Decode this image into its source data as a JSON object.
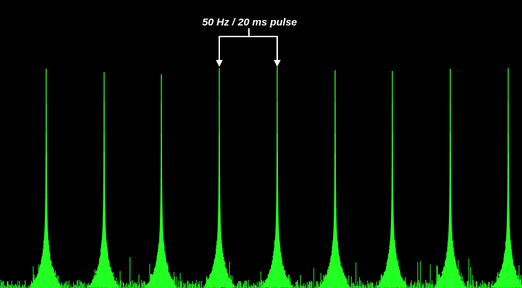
{
  "annotation": "50 Hz / 20 ms pulse"
}
